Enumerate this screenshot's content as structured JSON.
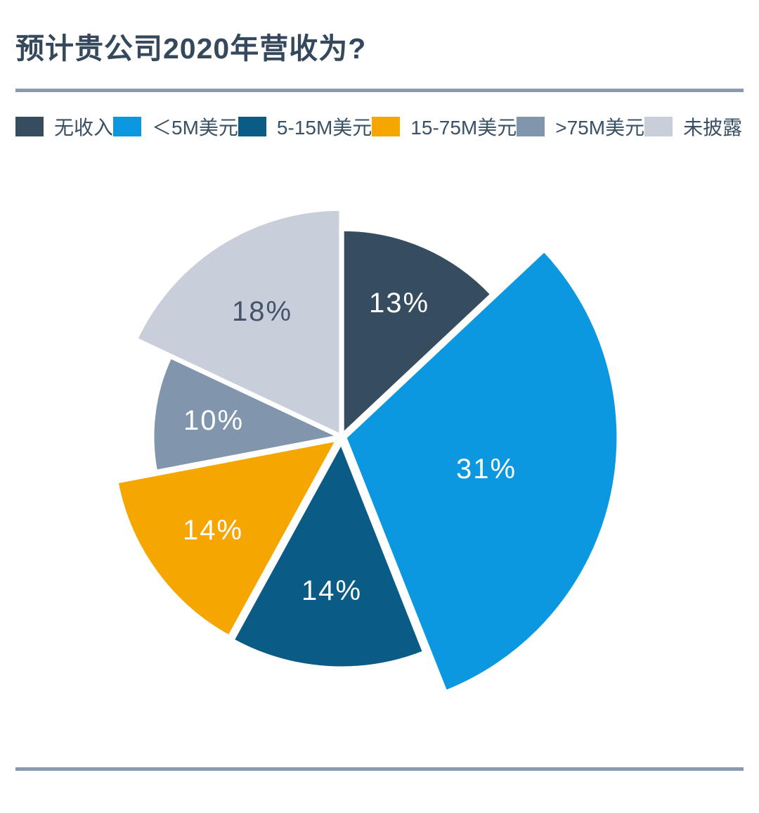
{
  "title": "预计贵公司2020年营收为?",
  "divider_color": "#8A9AAE",
  "background_color": "#FFFFFF",
  "chart_data": {
    "type": "pie",
    "title": "预计贵公司2020年营收为?",
    "categories": [
      "无收入",
      "＜5M美元",
      "5-15M美元",
      "15-75M美元",
      ">75M美元",
      "未披露"
    ],
    "values": [
      13,
      31,
      14,
      14,
      10,
      18
    ],
    "labels": [
      "13%",
      "31%",
      "14%",
      "14%",
      "10%",
      "18%"
    ],
    "colors": [
      "#364D60",
      "#0B98E0",
      "#0A5C87",
      "#F5A600",
      "#8196AC",
      "#C8CEDA"
    ],
    "label_colors": [
      "#FFFFFF",
      "#FFFFFF",
      "#FFFFFF",
      "#FFFFFF",
      "#FFFFFF",
      "#44546A"
    ],
    "legend_position": "top",
    "start_angle_deg": 0,
    "direction": "clockwise",
    "stroke_color": "#FFFFFF",
    "layout": {
      "center": [
        486,
        621
      ],
      "radii": [
        292,
        389,
        321,
        320,
        266,
        322
      ],
      "explode": [
        3,
        5,
        8,
        7,
        3,
        2
      ],
      "label_radii": [
        204,
        206,
        211,
        219,
        180,
        209
      ],
      "stroke_width": 5
    }
  }
}
